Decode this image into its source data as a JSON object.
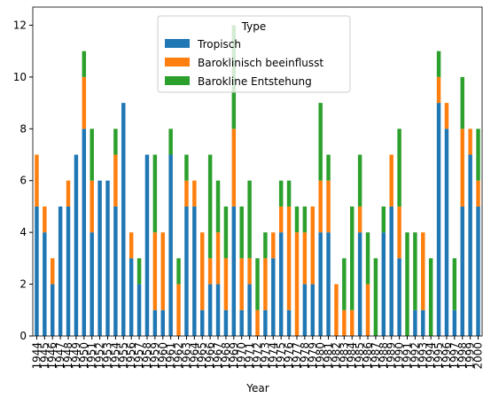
{
  "chart_data": {
    "type": "stacked_bar",
    "xlabel": "Year",
    "categories": [
      "1944",
      "1945",
      "1946",
      "1947",
      "1948",
      "1949",
      "1950",
      "1951",
      "1952",
      "1953",
      "1954",
      "1955",
      "1956",
      "1957",
      "1958",
      "1959",
      "1960",
      "1961",
      "1962",
      "1963",
      "1964",
      "1965",
      "1966",
      "1967",
      "1968",
      "1969",
      "1970",
      "1971",
      "1972",
      "1973",
      "1974",
      "1975",
      "1976",
      "1977",
      "1978",
      "1979",
      "1980",
      "1981",
      "1982",
      "1983",
      "1984",
      "1985",
      "1986",
      "1987",
      "1988",
      "1989",
      "1990",
      "1991",
      "1992",
      "1993",
      "1994",
      "1995",
      "1996",
      "1997",
      "1998",
      "1999",
      "2000"
    ],
    "series": [
      {
        "name": "Tropisch",
        "color": "#1f77b4",
        "values": [
          5,
          4,
          2,
          5,
          5,
          7,
          8,
          4,
          6,
          6,
          5,
          9,
          3,
          2,
          7,
          1,
          1,
          7,
          0,
          5,
          5,
          1,
          2,
          2,
          1,
          5,
          1,
          2,
          0,
          1,
          3,
          4,
          1,
          0,
          2,
          2,
          4,
          4,
          0,
          0,
          0,
          4,
          0,
          0,
          4,
          5,
          3,
          0,
          1,
          1,
          0,
          9,
          8,
          1,
          5,
          7,
          5
        ]
      },
      {
        "name": "Baroklinisch beeinflusst",
        "color": "#ff7f0e",
        "values": [
          2,
          1,
          1,
          0,
          1,
          0,
          2,
          2,
          0,
          0,
          2,
          0,
          1,
          0,
          0,
          3,
          3,
          0,
          2,
          1,
          1,
          3,
          1,
          2,
          2,
          3,
          2,
          1,
          1,
          2,
          1,
          1,
          4,
          4,
          2,
          3,
          2,
          2,
          2,
          1,
          1,
          1,
          2,
          0,
          0,
          2,
          2,
          0,
          0,
          3,
          0,
          1,
          1,
          0,
          3,
          1,
          1
        ]
      },
      {
        "name": "Barokline Entstehung",
        "color": "#2ca02c",
        "values": [
          0,
          0,
          0,
          0,
          0,
          0,
          1,
          2,
          0,
          0,
          1,
          0,
          0,
          1,
          0,
          3,
          0,
          1,
          1,
          1,
          0,
          0,
          4,
          2,
          2,
          4,
          2,
          3,
          2,
          1,
          0,
          1,
          1,
          1,
          1,
          0,
          3,
          1,
          0,
          2,
          4,
          2,
          2,
          3,
          1,
          0,
          3,
          4,
          3,
          0,
          3,
          1,
          0,
          2,
          2,
          0,
          2
        ]
      }
    ],
    "ylim": [
      0,
      12.7
    ],
    "yticks": [
      0,
      2,
      4,
      6,
      8,
      10,
      12
    ],
    "legend": {
      "title": "Type",
      "position": "upper center"
    }
  }
}
